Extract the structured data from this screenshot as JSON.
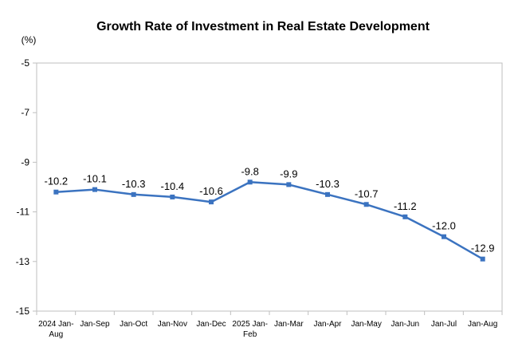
{
  "chart_data": {
    "type": "line",
    "title": "Growth Rate of Investment in Real Estate Development",
    "ylabel": "(%)",
    "xlabel": "",
    "ylim": [
      -15,
      -5
    ],
    "yticks": [
      -5,
      -7,
      -9,
      -11,
      -13,
      -15
    ],
    "grid": false,
    "legend": "none",
    "categories": [
      [
        "2024 Jan-",
        "Aug"
      ],
      [
        "Jan-Sep"
      ],
      [
        "Jan-Oct"
      ],
      [
        "Jan-Nov"
      ],
      [
        "Jan-Dec"
      ],
      [
        "2025 Jan-",
        "Feb"
      ],
      [
        "Jan-Mar"
      ],
      [
        "Jan-Apr"
      ],
      [
        "Jan-May"
      ],
      [
        "Jan-Jun"
      ],
      [
        "Jan-Jul"
      ],
      [
        "Jan-Aug"
      ]
    ],
    "series": [
      {
        "name": "Growth Rate",
        "color": "#3B73C0",
        "values": [
          -10.2,
          -10.1,
          -10.3,
          -10.4,
          -10.6,
          -9.8,
          -9.9,
          -10.3,
          -10.7,
          -11.2,
          -12.0,
          -12.9
        ]
      }
    ]
  }
}
